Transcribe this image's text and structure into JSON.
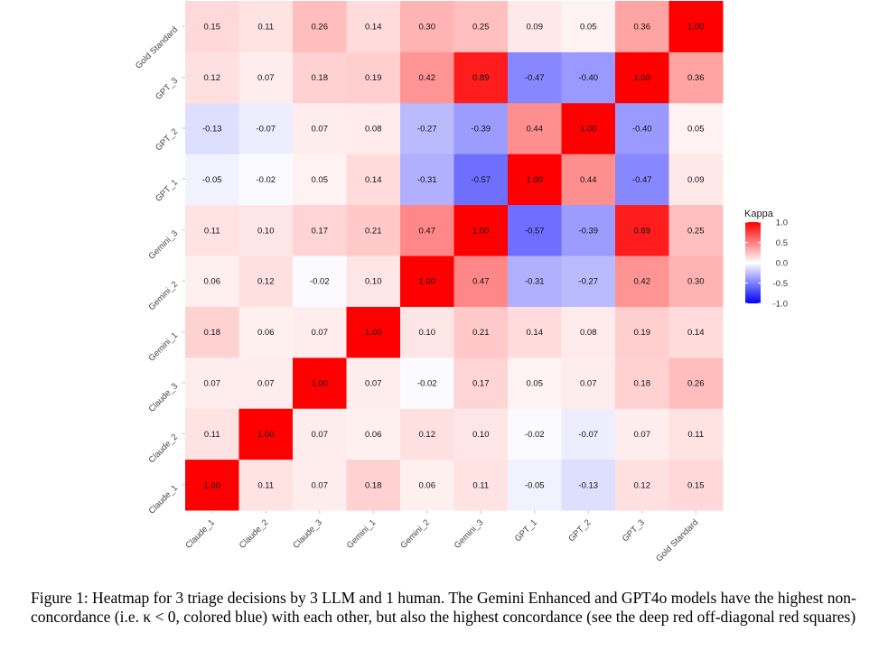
{
  "chart_data": {
    "type": "heatmap",
    "x_categories": [
      "Claude_1",
      "Claude_2",
      "Claude_3",
      "Gemini_1",
      "Gemini_2",
      "Gemini_3",
      "GPT_1",
      "GPT_2",
      "GPT_3",
      "Gold Standard"
    ],
    "y_categories": [
      "Claude_1",
      "Claude_2",
      "Claude_3",
      "Gemini_1",
      "Gemini_2",
      "Gemini_3",
      "GPT_1",
      "GPT_2",
      "GPT_3",
      "Gold Standard"
    ],
    "values": [
      [
        1.0,
        0.11,
        0.07,
        0.18,
        0.06,
        0.11,
        -0.05,
        -0.13,
        0.12,
        0.15
      ],
      [
        0.11,
        1.0,
        0.07,
        0.06,
        0.12,
        0.1,
        -0.02,
        -0.07,
        0.07,
        0.11
      ],
      [
        0.07,
        0.07,
        1.0,
        0.07,
        -0.02,
        0.17,
        0.05,
        0.07,
        0.18,
        0.26
      ],
      [
        0.18,
        0.06,
        0.07,
        1.0,
        0.1,
        0.21,
        0.14,
        0.08,
        0.19,
        0.14
      ],
      [
        0.06,
        0.12,
        -0.02,
        0.1,
        1.0,
        0.47,
        -0.31,
        -0.27,
        0.42,
        0.3
      ],
      [
        0.11,
        0.1,
        0.17,
        0.21,
        0.47,
        1.0,
        -0.57,
        -0.39,
        0.89,
        0.25
      ],
      [
        -0.05,
        -0.02,
        0.05,
        0.14,
        -0.31,
        -0.57,
        1.0,
        0.44,
        -0.47,
        0.09
      ],
      [
        -0.13,
        -0.07,
        0.07,
        0.08,
        -0.27,
        -0.39,
        0.44,
        1.0,
        -0.4,
        0.05
      ],
      [
        0.12,
        0.07,
        0.18,
        0.19,
        0.42,
        0.89,
        -0.47,
        -0.4,
        1.0,
        0.36
      ],
      [
        0.15,
        0.11,
        0.26,
        0.14,
        0.3,
        0.25,
        0.09,
        0.05,
        0.36,
        1.0
      ]
    ],
    "legend": {
      "title": "Kappa",
      "ticks": [
        "1.0",
        "0.5",
        "0.0",
        "-0.5",
        "-1.0"
      ],
      "range": [
        -1,
        1
      ],
      "placement": "right"
    },
    "colors": {
      "low": "#0000ff",
      "mid": "#ffffff",
      "high": "#ff0000"
    }
  },
  "caption": "Figure 1: Heatmap for 3 triage decisions by 3 LLM and 1 human. The Gemini Enhanced and GPT4o models have the highest non-concordance (i.e. κ < 0, colored blue) with each other, but also the highest concordance (see the deep red off-diagonal red squares)"
}
